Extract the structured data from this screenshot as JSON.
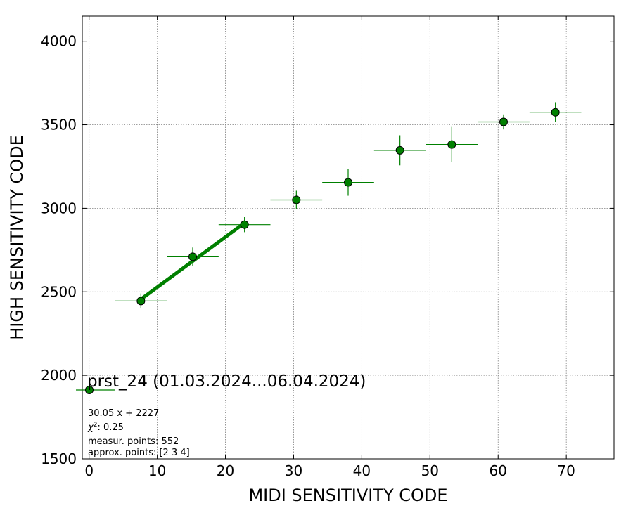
{
  "chart_data": {
    "type": "scatter",
    "xlabel": "MIDI SENSITIVITY CODE",
    "ylabel": "HIGH SENSITIVITY CODE",
    "xlim": [
      -1,
      77
    ],
    "ylim": [
      1500,
      4150
    ],
    "xticks": [
      0,
      10,
      20,
      30,
      40,
      50,
      60,
      70
    ],
    "yticks": [
      1500,
      2000,
      2500,
      3000,
      3500,
      4000
    ],
    "grid": true,
    "color": "#008000",
    "series": [
      {
        "name": "prst_24 (01.03.2024...06.04.2024)",
        "points": [
          {
            "x": 7.6,
            "y": 2445,
            "xerr": 3.8,
            "yerr": 45
          },
          {
            "x": 15.2,
            "y": 2710,
            "xerr": 3.8,
            "yerr": 55
          },
          {
            "x": 22.8,
            "y": 2902,
            "xerr": 3.8,
            "yerr": 45
          },
          {
            "x": 30.4,
            "y": 3050,
            "xerr": 3.8,
            "yerr": 55
          },
          {
            "x": 38.0,
            "y": 3155,
            "xerr": 3.8,
            "yerr": 80
          },
          {
            "x": 45.6,
            "y": 3347,
            "xerr": 3.8,
            "yerr": 90
          },
          {
            "x": 53.2,
            "y": 3382,
            "xerr": 3.8,
            "yerr": 105
          },
          {
            "x": 60.8,
            "y": 3517,
            "xerr": 3.8,
            "yerr": 45
          },
          {
            "x": 68.4,
            "y": 3575,
            "xerr": 3.8,
            "yerr": 60
          }
        ]
      }
    ],
    "fit": {
      "slope": 30.05,
      "intercept": 2227,
      "x_start": 7.6,
      "x_end": 22.8
    },
    "legend": {
      "label": "prst_24 (01.03.2024...06.04.2024)",
      "placement": "lower-left"
    },
    "annotations": [
      "30.05 x + 2227",
      "measur. points: 552",
      "approx. points: [2 3 4]"
    ],
    "chi2": {
      "symbol": "χ",
      "sup": "2",
      "value": ": 0.25"
    }
  }
}
